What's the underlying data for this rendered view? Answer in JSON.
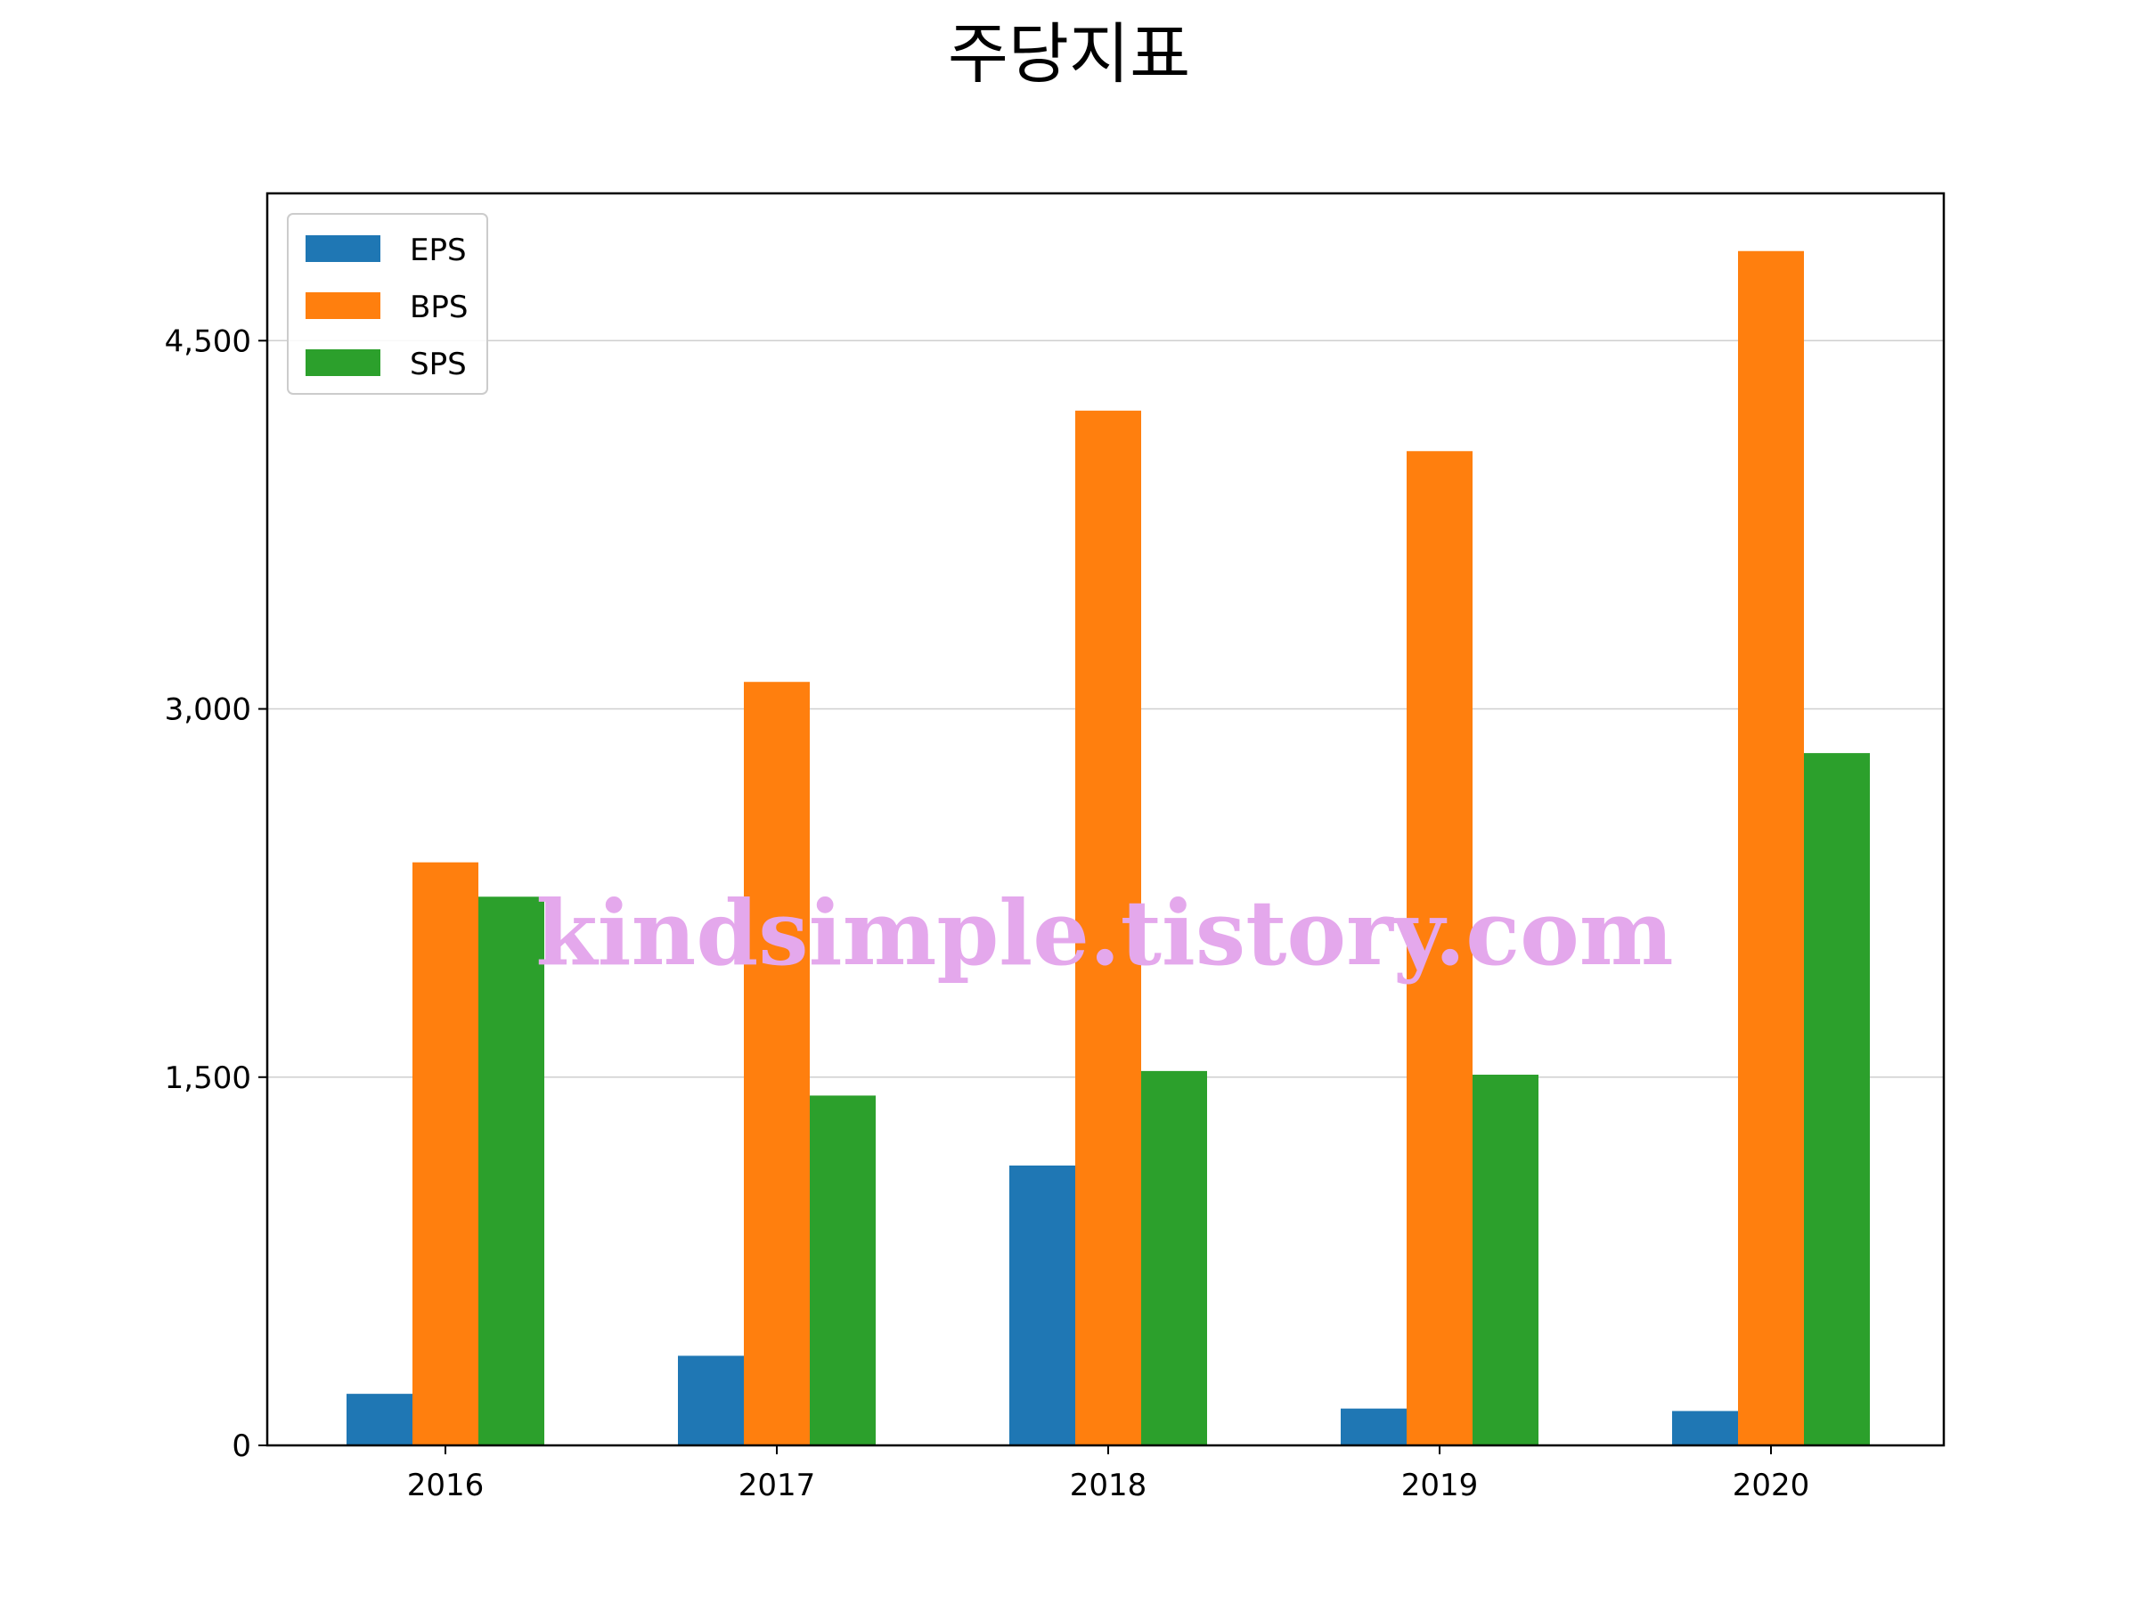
{
  "chart_data": {
    "type": "bar",
    "title": "주당지표",
    "xlabel": "",
    "ylabel": "",
    "categories": [
      "2016",
      "2017",
      "2018",
      "2019",
      "2020"
    ],
    "series": [
      {
        "name": "EPS",
        "color": "#1f77b4",
        "values": [
          210,
          365,
          1140,
          150,
          140
        ]
      },
      {
        "name": "BPS",
        "color": "#ff7f0e",
        "values": [
          2375,
          3110,
          4215,
          4050,
          4865
        ]
      },
      {
        "name": "SPS",
        "color": "#2ca02c",
        "values": [
          2235,
          1425,
          1525,
          1510,
          2820
        ]
      }
    ],
    "ylim": [
      0,
      5100
    ],
    "yticks": [
      0,
      1500,
      3000,
      4500
    ],
    "ytick_labels": [
      "0",
      "1,500",
      "3,000",
      "4,500"
    ],
    "grid": "horizontal",
    "legend_position": "top-left",
    "watermark": "kindsimple.tistory.com"
  }
}
